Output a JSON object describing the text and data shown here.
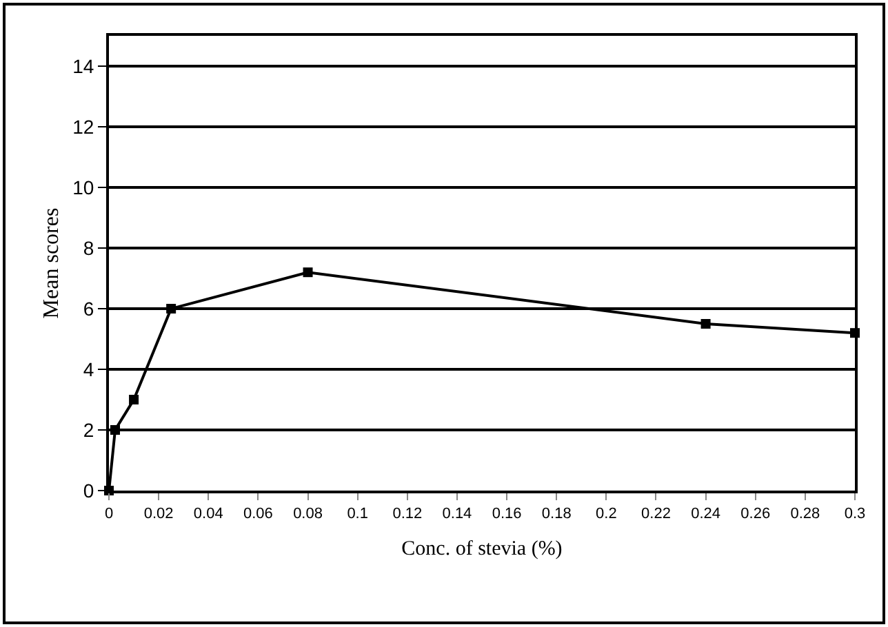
{
  "chart_data": {
    "type": "line",
    "xlabel": "Conc. of stevia (%)",
    "ylabel": "Mean scores",
    "x": [
      0,
      0.0025,
      0.01,
      0.025,
      0.08,
      0.24,
      0.3
    ],
    "series": [
      {
        "color": "#000000",
        "values": [
          0,
          2,
          3,
          6,
          7.2,
          5.5,
          5.2
        ]
      }
    ],
    "xlim": [
      0,
      0.3
    ],
    "xticks": [
      0,
      0.02,
      0.04,
      0.06,
      0.08,
      0.1,
      0.12,
      0.14,
      0.16,
      0.18,
      0.2,
      0.22,
      0.24,
      0.26,
      0.28,
      0.3
    ],
    "ylim": [
      0,
      15
    ],
    "yticks": [
      0,
      2,
      4,
      6,
      8,
      10,
      12,
      14
    ],
    "grid": "y",
    "marker": "square",
    "line_style": "solid"
  }
}
